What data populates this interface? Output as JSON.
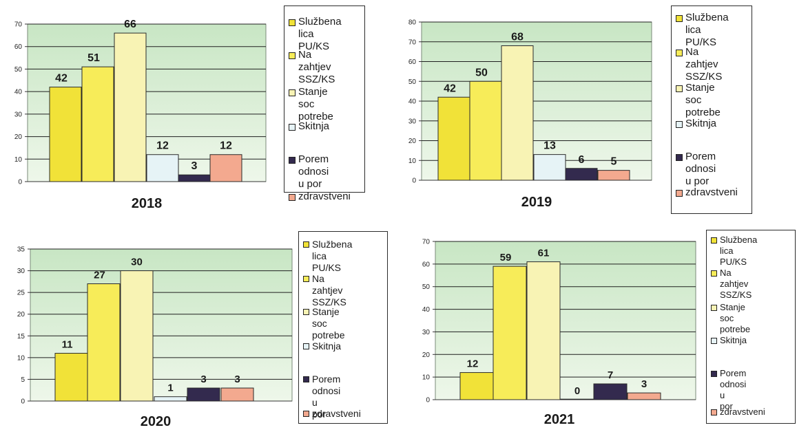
{
  "legend_labels": [
    "Službena lica\nPU/KS",
    "Na zahtjev\nSSZ/KS",
    "Stanje soc\npotrebe",
    "Skitnja",
    "Porem\nodnosi u por",
    "zdravstveni"
  ],
  "legend_labels_alt": [
    "Službena lica\nPU/KS",
    "Na zahtjev\nSSZ/KS",
    "Stanje soc\npotrebe",
    "Skitnja",
    "Porem odnosi u\npor",
    "zdravstveni"
  ],
  "colors": {
    "plot_bg_top": "#c8e6c4",
    "plot_bg_bottom": "#eef7ea",
    "series": [
      "#f1e238",
      "#f7ec59",
      "#f8f3b4",
      "#e6f3f6",
      "#332a4e",
      "#f3a98f"
    ]
  },
  "chart_data": [
    {
      "type": "bar",
      "title": "2018",
      "categories": [
        "Službena lica PU/KS",
        "Na zahtjev SSZ/KS",
        "Stanje soc potrebe",
        "Skitnja",
        "Porem odnosi u por",
        "zdravstveni"
      ],
      "values": [
        42,
        51,
        66,
        12,
        3,
        12
      ],
      "ylim": [
        0,
        70
      ],
      "yticks": [
        0,
        10,
        20,
        30,
        40,
        50,
        60,
        70
      ],
      "grid": true,
      "legend": "right"
    },
    {
      "type": "bar",
      "title": "2019",
      "categories": [
        "Službena lica PU/KS",
        "Na zahtjev SSZ/KS",
        "Stanje soc potrebe",
        "Skitnja",
        "Porem odnosi u por",
        "zdravstveni"
      ],
      "values": [
        42,
        50,
        68,
        13,
        6,
        5
      ],
      "ylim": [
        0,
        80
      ],
      "yticks": [
        0,
        10,
        20,
        30,
        40,
        50,
        60,
        70,
        80
      ],
      "grid": true,
      "legend": "right"
    },
    {
      "type": "bar",
      "title": "2020",
      "categories": [
        "Službena lica PU/KS",
        "Na zahtjev SSZ/KS",
        "Stanje soc potrebe",
        "Skitnja",
        "Porem odnosi u por",
        "zdravstveni"
      ],
      "values": [
        11,
        27,
        30,
        1,
        3,
        3
      ],
      "ylim": [
        0,
        35
      ],
      "yticks": [
        0,
        5,
        10,
        15,
        20,
        25,
        30,
        35
      ],
      "grid": true,
      "legend": "right"
    },
    {
      "type": "bar",
      "title": "2021",
      "categories": [
        "Službena lica PU/KS",
        "Na zahtjev SSZ/KS",
        "Stanje soc potrebe",
        "Skitnja",
        "Porem odnosi u por",
        "zdravstveni"
      ],
      "values": [
        12,
        59,
        61,
        0,
        7,
        3
      ],
      "ylim": [
        0,
        70
      ],
      "yticks": [
        0,
        10,
        20,
        30,
        40,
        50,
        60,
        70
      ],
      "grid": true,
      "legend": "right"
    }
  ]
}
